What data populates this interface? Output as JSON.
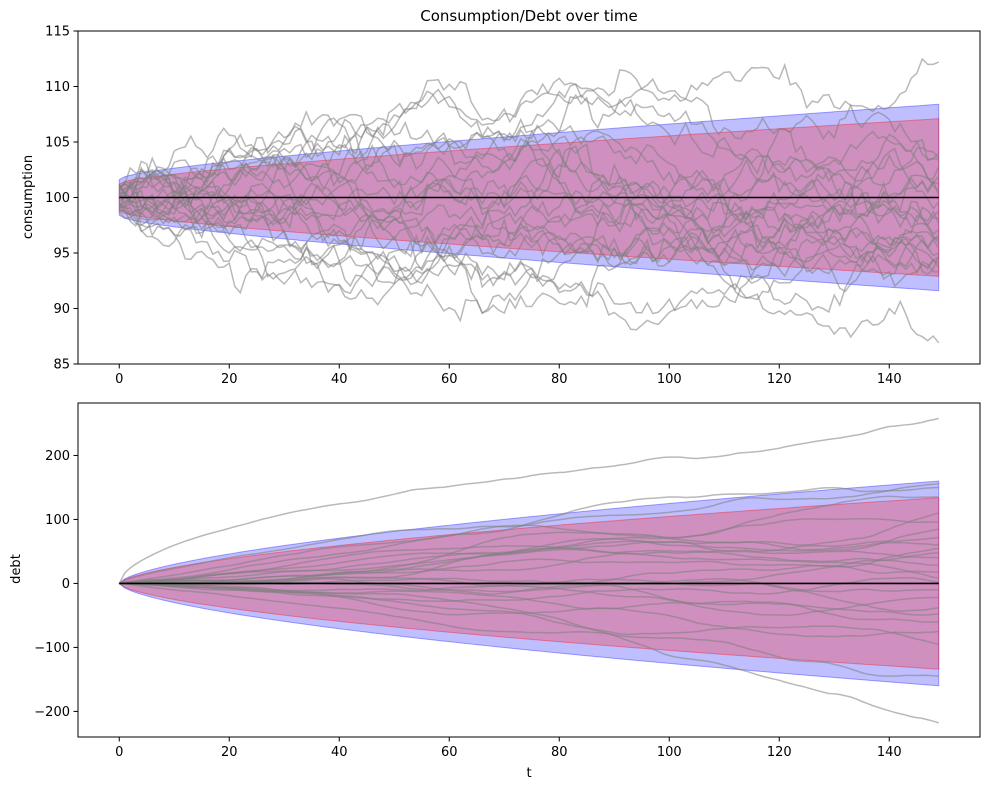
{
  "chart_data": [
    {
      "type": "line",
      "title": "Consumption/Debt over time",
      "xlabel": "",
      "ylabel": "consumption",
      "xlim": [
        -7.5,
        156.5
      ],
      "ylim": [
        85,
        115
      ],
      "xticks": [
        0,
        20,
        40,
        60,
        80,
        100,
        120,
        140
      ],
      "yticks": [
        85,
        90,
        95,
        100,
        105,
        110,
        115
      ],
      "grid": false,
      "t_max": 149,
      "mean": 100,
      "bands": [
        {
          "color": "#0000ff",
          "alpha": 0.25,
          "lower_start": 98.4,
          "lower_end": 91.6,
          "upper_start": 101.6,
          "upper_end": 108.4
        },
        {
          "color": "#ff0000",
          "alpha": 0.25,
          "lower_start": 98.8,
          "lower_end": 92.9,
          "upper_start": 101.2,
          "upper_end": 107.1
        }
      ],
      "paths_count": 25,
      "path_color": "#808080",
      "path_alpha": 0.55,
      "path_endpoints": [
        112.2,
        104.0,
        103.5,
        103.4,
        102.8,
        101.9,
        100.6,
        100.2,
        99.6,
        98.8,
        98.1,
        97.7,
        97.1,
        96.6,
        95.9,
        95.4,
        95.0,
        94.6,
        94.1,
        93.7,
        93.3,
        94.8,
        96.3,
        86.9,
        101.3
      ],
      "path_extremes": [
        12.0,
        4.0,
        3.6,
        3.4,
        3.0,
        2.2,
        1.4,
        1.2,
        1.0,
        0.8,
        0.6,
        0.5,
        0.4,
        0.3,
        0.2,
        0.2,
        0.3,
        0.4,
        0.5,
        0.6,
        0.8,
        1.0,
        1.2,
        14.5,
        1.0
      ]
    },
    {
      "type": "line",
      "title": "",
      "xlabel": "t",
      "ylabel": "debt",
      "xlim": [
        -7.5,
        156.5
      ],
      "ylim": [
        -240,
        282
      ],
      "xticks": [
        0,
        20,
        40,
        60,
        80,
        100,
        120,
        140
      ],
      "yticks": [
        -200,
        -100,
        0,
        100,
        200
      ],
      "grid": false,
      "t_max": 149,
      "mean": 0,
      "bands": [
        {
          "color": "#0000ff",
          "alpha": 0.25,
          "lower_end": -160,
          "upper_end": 160
        },
        {
          "color": "#ff0000",
          "alpha": 0.25,
          "lower_end": -134,
          "upper_end": 134
        }
      ],
      "paths_count": 25,
      "path_color": "#808080",
      "path_alpha": 0.55,
      "path_endpoints": [
        258,
        156,
        150,
        135,
        110,
        96,
        85,
        72,
        60,
        48,
        40,
        28,
        18,
        8,
        2,
        -10,
        -22,
        -38,
        -48,
        -60,
        -75,
        -95,
        -145,
        -218,
        55
      ],
      "path_curvature": [
        0.55,
        0.7,
        0.9,
        1.0,
        1.1,
        0.8,
        1.3,
        1.0,
        0.9,
        1.2,
        1.0,
        1.4,
        0.9,
        1.1,
        1.0,
        1.0,
        1.3,
        0.9,
        1.1,
        1.2,
        1.0,
        1.3,
        1.0,
        1.6,
        0.8
      ]
    }
  ]
}
